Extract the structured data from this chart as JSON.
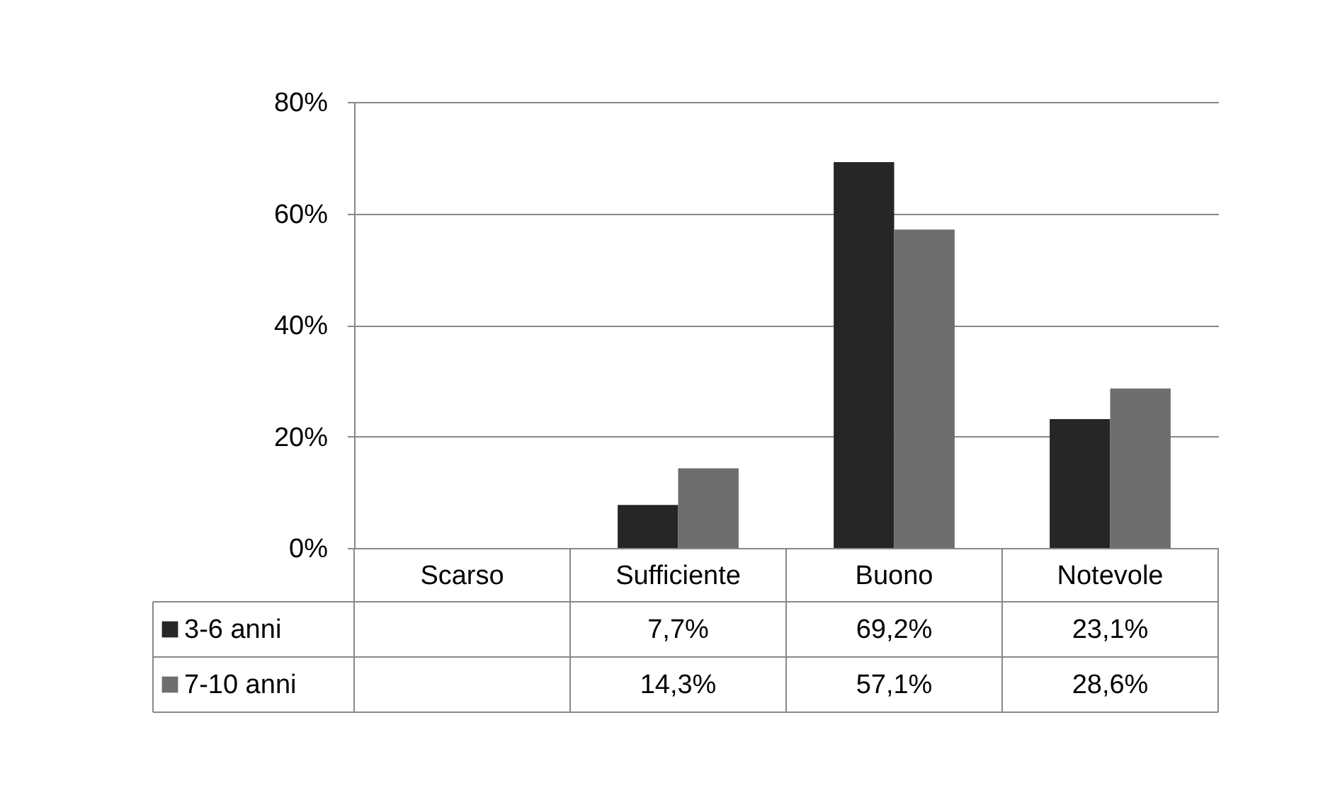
{
  "chart_data": {
    "type": "bar",
    "categories": [
      "Scarso",
      "Sufficiente",
      "Buono",
      "Notevole"
    ],
    "series": [
      {
        "name": "3-6 anni",
        "color": "#262626",
        "values": [
          null,
          7.7,
          69.2,
          23.1
        ],
        "value_labels": [
          null,
          "7,7%",
          "69,2%",
          "23,1%"
        ]
      },
      {
        "name": "7-10 anni",
        "color": "#6e6e6e",
        "values": [
          null,
          14.3,
          57.1,
          28.6
        ],
        "value_labels": [
          null,
          "14,3%",
          "57,1%",
          "28,6%"
        ]
      }
    ],
    "ylim": [
      0,
      80
    ],
    "yticks": [
      {
        "value": 0,
        "label": "0%"
      },
      {
        "value": 20,
        "label": "20%"
      },
      {
        "value": 40,
        "label": "40%"
      },
      {
        "value": 60,
        "label": "60%"
      },
      {
        "value": 80,
        "label": "80%"
      }
    ],
    "grid": "y",
    "legend": "bottom"
  }
}
